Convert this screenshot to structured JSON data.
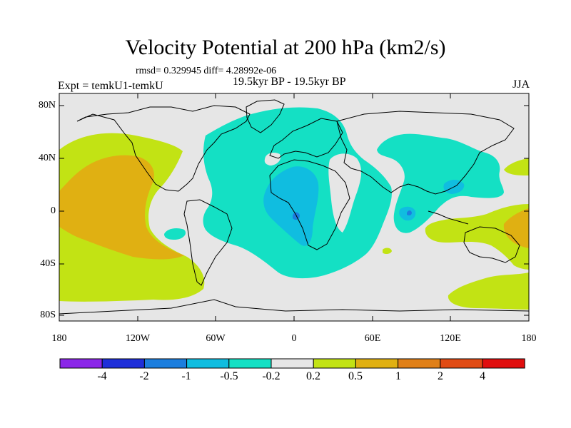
{
  "title": "Velocity Potential at 200 hPa (km2/s)",
  "stats": "rmsd= 0.329945 diff= 4.28992e-06",
  "expt": "Expt = temkU1-temkU",
  "period": "19.5kyr BP - 19.5kyr BP",
  "season": "JJA",
  "lat_labels": [
    "80N",
    "40N",
    "0",
    "40S",
    "80S"
  ],
  "lon_labels": [
    "180",
    "120W",
    "60W",
    "0",
    "60E",
    "120E",
    "180"
  ],
  "colorbar": {
    "colors": [
      "#8b26e8",
      "#1f2fd9",
      "#1c7ede",
      "#10bde0",
      "#14e0c4",
      "#e6e6e6",
      "#c2e314",
      "#e0b012",
      "#e08018",
      "#e04b14",
      "#e00e0e"
    ],
    "labels": [
      "-4",
      "-2",
      "-1",
      "-0.5",
      "-0.2",
      "0.2",
      "0.5",
      "1",
      "2",
      "4"
    ]
  },
  "map_colors": {
    "neutral": "#e6e6e6",
    "c_neg02": "#14e0c4",
    "c_neg05": "#10bde0",
    "c_neg1": "#1c7ede",
    "c_pos02": "#c2e314",
    "c_pos05": "#e0b012"
  }
}
